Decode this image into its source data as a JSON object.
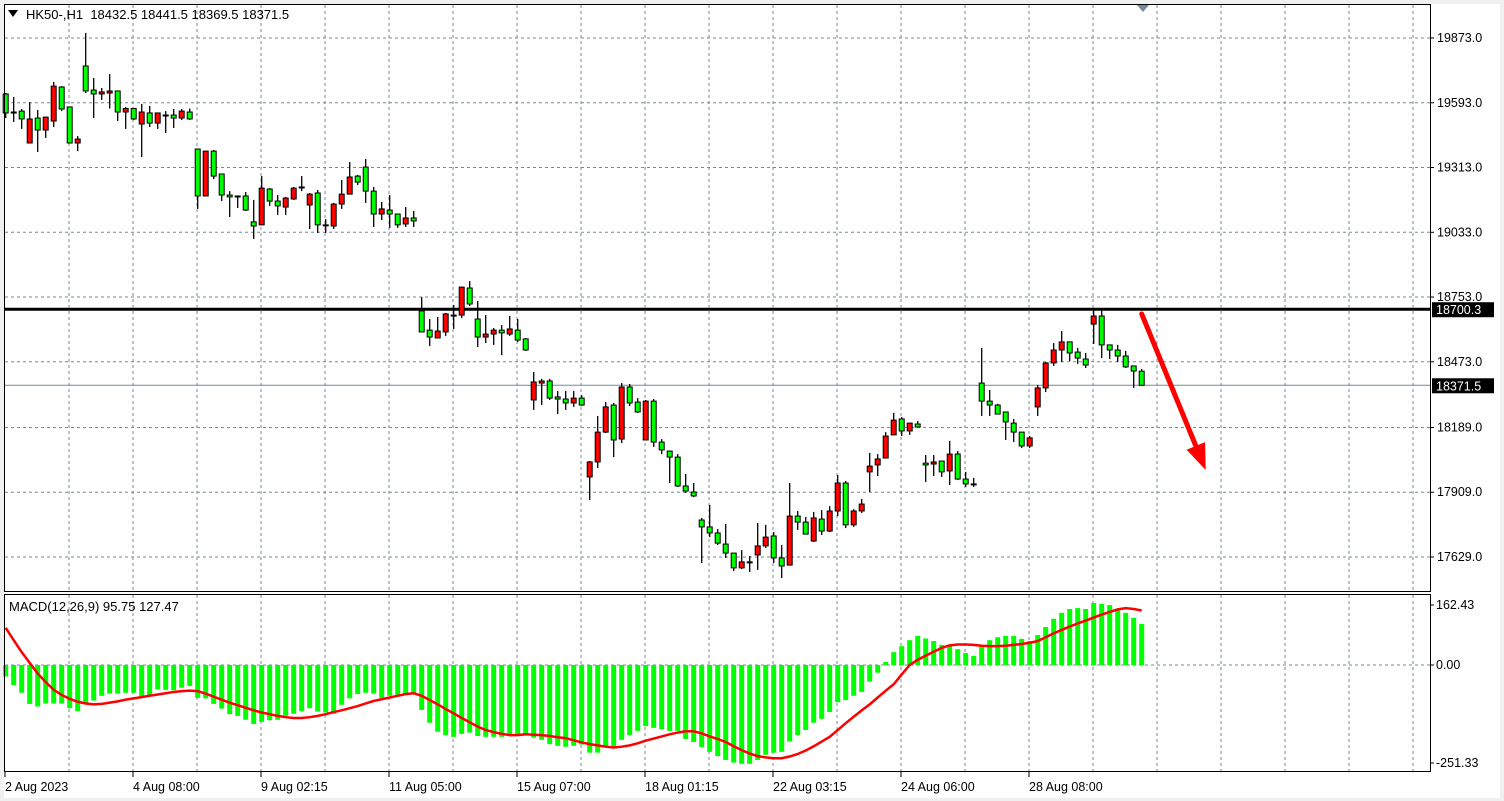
{
  "header": {
    "symbol": "HK50-,H1",
    "ohlc": "18432.5 18441.5 18369.5 18371.5"
  },
  "macd_label": "MACD(12,26,9) 95.75 127.47",
  "colors": {
    "bull": "#ff0000",
    "bear": "#00ff00",
    "histogram": "#00ff00",
    "signal": "#ff0000",
    "grid": "#778899",
    "level_line": "#000000",
    "arrow": "#ff0000"
  },
  "chart_data": [
    {
      "type": "candlestick",
      "symbol": "HK50-",
      "timeframe": "H1",
      "ylim": [
        17530,
        19995
      ],
      "price_ticks": [
        "19873.0",
        "19593.0",
        "19313.0",
        "19033.0",
        "18753.0",
        "18473.0",
        "18189.0",
        "17909.0",
        "17629.0"
      ],
      "horizontal_line": {
        "value": 18700.3,
        "label": "18700.3"
      },
      "current_price": {
        "value": 18371.5,
        "label": "18371.5"
      },
      "annotation": {
        "type": "arrow",
        "direction": "down",
        "from": {
          "bar": 142,
          "price": 18680
        },
        "to": {
          "bar": 150,
          "price": 18005
        }
      },
      "grid": true,
      "time_ticks": [
        {
          "label": "2 Aug 2023",
          "bar": 0
        },
        {
          "label": "4 Aug 08:00",
          "bar": 16
        },
        {
          "label": "9 Aug 02:15",
          "bar": 32
        },
        {
          "label": "11 Aug 05:00",
          "bar": 48
        },
        {
          "label": "15 Aug 07:00",
          "bar": 64
        },
        {
          "label": "18 Aug 01:15",
          "bar": 80
        },
        {
          "label": "22 Aug 03:15",
          "bar": 96
        },
        {
          "label": "24 Aug 06:00",
          "bar": 112
        },
        {
          "label": "28 Aug 08:00",
          "bar": 128
        }
      ],
      "candles_ohlc": [
        [
          19631,
          19635,
          19527,
          19549
        ],
        [
          19553,
          19618,
          19510,
          19553
        ],
        [
          19557,
          19566,
          19480,
          19523
        ],
        [
          19419,
          19596,
          19419,
          19523
        ],
        [
          19527,
          19562,
          19380,
          19475
        ],
        [
          19475,
          19531,
          19441,
          19531
        ],
        [
          19514,
          19683,
          19488,
          19665
        ],
        [
          19661,
          19665,
          19557,
          19566
        ],
        [
          19575,
          19575,
          19419,
          19419
        ],
        [
          19419,
          19449,
          19384,
          19436
        ],
        [
          19752,
          19895,
          19635,
          19644
        ],
        [
          19648,
          19700,
          19527,
          19631
        ],
        [
          19631,
          19657,
          19605,
          19640
        ],
        [
          19635,
          19717,
          19568,
          19644
        ],
        [
          19644,
          19644,
          19514,
          19553
        ],
        [
          19553,
          19575,
          19480,
          19568
        ],
        [
          19568,
          19568,
          19518,
          19523
        ],
        [
          19501,
          19588,
          19358,
          19553
        ],
        [
          19549,
          19579,
          19488,
          19505
        ],
        [
          19505,
          19549,
          19480,
          19549
        ],
        [
          19540,
          19557,
          19462,
          19540
        ],
        [
          19540,
          19566,
          19484,
          19527
        ],
        [
          19527,
          19566,
          19518,
          19557
        ],
        [
          19553,
          19568,
          19518,
          19523
        ],
        [
          19393,
          19393,
          19134,
          19190
        ],
        [
          19190,
          19384,
          19190,
          19384
        ],
        [
          19384,
          19389,
          19263,
          19276
        ],
        [
          19285,
          19285,
          19168,
          19194
        ],
        [
          19194,
          19211,
          19099,
          19186
        ],
        [
          19186,
          19190,
          19138,
          19190
        ],
        [
          19190,
          19207,
          19125,
          19129
        ],
        [
          19078,
          19173,
          19004,
          19060
        ],
        [
          19065,
          19276,
          19065,
          19224
        ],
        [
          19220,
          19224,
          19147,
          19168
        ],
        [
          19168,
          19194,
          19108,
          19147
        ],
        [
          19142,
          19186,
          19108,
          19181
        ],
        [
          19177,
          19229,
          19173,
          19224
        ],
        [
          19229,
          19276,
          19211,
          19229
        ],
        [
          19151,
          19203,
          19047,
          19198
        ],
        [
          19203,
          19216,
          19030,
          19065
        ],
        [
          19065,
          19090,
          19030,
          19065
        ],
        [
          19060,
          19160,
          19047,
          19155
        ],
        [
          19155,
          19259,
          19134,
          19198
        ],
        [
          19198,
          19337,
          19198,
          19272
        ],
        [
          19276,
          19281,
          19237,
          19250
        ],
        [
          19315,
          19350,
          19160,
          19211
        ],
        [
          19211,
          19229,
          19056,
          19112
        ],
        [
          19112,
          19164,
          19086,
          19134
        ],
        [
          19129,
          19194,
          19052,
          19112
        ],
        [
          19112,
          19112,
          19052,
          19065
        ],
        [
          19069,
          19142,
          19056,
          19095
        ],
        [
          19095,
          19125,
          19056,
          19082
        ],
        [
          18693,
          18753,
          18602,
          18602
        ],
        [
          18610,
          18658,
          18541,
          18580
        ],
        [
          18576,
          18667,
          18576,
          18606
        ],
        [
          18602,
          18684,
          18585,
          18680
        ],
        [
          18675,
          18719,
          18615,
          18675
        ],
        [
          18675,
          18796,
          18662,
          18796
        ],
        [
          18792,
          18822,
          18714,
          18723
        ],
        [
          18658,
          18736,
          18537,
          18580
        ],
        [
          18580,
          18675,
          18554,
          18593
        ],
        [
          18593,
          18619,
          18546,
          18610
        ],
        [
          18610,
          18632,
          18502,
          18598
        ],
        [
          18593,
          18671,
          18585,
          18615
        ],
        [
          18610,
          18658,
          18559,
          18567
        ],
        [
          18572,
          18576,
          18520,
          18524
        ],
        [
          18308,
          18429,
          18265,
          18386
        ],
        [
          18381,
          18399,
          18286,
          18390
        ],
        [
          18390,
          18399,
          18308,
          18316
        ],
        [
          18321,
          18347,
          18247,
          18312
        ],
        [
          18312,
          18347,
          18265,
          18295
        ],
        [
          18295,
          18347,
          18278,
          18316
        ],
        [
          18316,
          18329,
          18282,
          18286
        ],
        [
          17975,
          18044,
          17875,
          18040
        ],
        [
          18040,
          18239,
          18014,
          18169
        ],
        [
          18169,
          18299,
          18165,
          18278
        ],
        [
          18286,
          18295,
          18061,
          18135
        ],
        [
          18139,
          18381,
          18122,
          18364
        ],
        [
          18364,
          18377,
          18282,
          18295
        ],
        [
          18299,
          18316,
          18252,
          18256
        ],
        [
          18135,
          18308,
          18135,
          18303
        ],
        [
          18303,
          18312,
          18105,
          18126
        ],
        [
          18126,
          18139,
          18074,
          18092
        ],
        [
          18087,
          18087,
          17949,
          18061
        ],
        [
          18061,
          18074,
          17932,
          17936
        ],
        [
          17936,
          17988,
          17906,
          17914
        ],
        [
          17910,
          17949,
          17888,
          17893
        ],
        [
          17789,
          17798,
          17603,
          17759
        ],
        [
          17759,
          17854,
          17715,
          17733
        ],
        [
          17733,
          17750,
          17681,
          17689
        ],
        [
          17685,
          17772,
          17625,
          17646
        ],
        [
          17646,
          17646,
          17568,
          17582
        ],
        [
          17582,
          17659,
          17577,
          17608
        ],
        [
          17608,
          17633,
          17564,
          17608
        ],
        [
          17638,
          17776,
          17573,
          17677
        ],
        [
          17677,
          17768,
          17668,
          17715
        ],
        [
          17720,
          17737,
          17603,
          17625
        ],
        [
          17625,
          17681,
          17538,
          17590
        ],
        [
          17594,
          17949,
          17594,
          17806
        ],
        [
          17806,
          17828,
          17746,
          17780
        ],
        [
          17780,
          17802,
          17728,
          17728
        ],
        [
          17698,
          17824,
          17694,
          17798
        ],
        [
          17793,
          17832,
          17724,
          17741
        ],
        [
          17741,
          17849,
          17737,
          17828
        ],
        [
          17828,
          17983,
          17806,
          17949
        ],
        [
          17949,
          17958,
          17754,
          17768
        ],
        [
          17768,
          17836,
          17759,
          17828
        ],
        [
          17828,
          17880,
          17819,
          17858
        ],
        [
          17997,
          18079,
          17910,
          18022
        ],
        [
          18027,
          18074,
          17979,
          18053
        ],
        [
          18057,
          18169,
          18057,
          18152
        ],
        [
          18157,
          18252,
          18157,
          18221
        ],
        [
          18226,
          18234,
          18152,
          18174
        ],
        [
          18174,
          18208,
          18157,
          18208
        ],
        [
          18204,
          18217,
          18191,
          18191
        ],
        [
          18035,
          18070,
          17953,
          18027
        ],
        [
          18031,
          18070,
          17979,
          18040
        ],
        [
          18044,
          18044,
          17975,
          17997
        ],
        [
          18001,
          18131,
          17940,
          18074
        ],
        [
          18074,
          18087,
          17962,
          17966
        ],
        [
          17966,
          17997,
          17932,
          17945
        ],
        [
          17945,
          17971,
          17932,
          17945
        ],
        [
          18381,
          18533,
          18239,
          18303
        ],
        [
          18303,
          18351,
          18239,
          18286
        ],
        [
          18286,
          18291,
          18247,
          18247
        ],
        [
          18256,
          18256,
          18135,
          18213
        ],
        [
          18208,
          18226,
          18126,
          18169
        ],
        [
          18169,
          18169,
          18100,
          18109
        ],
        [
          18109,
          18152,
          18100,
          18144
        ],
        [
          18278,
          18373,
          18239,
          18360
        ],
        [
          18360,
          18472,
          18342,
          18468
        ],
        [
          18468,
          18554,
          18455,
          18524
        ],
        [
          18524,
          18606,
          18472,
          18559
        ],
        [
          18559,
          18559,
          18476,
          18511
        ],
        [
          18515,
          18533,
          18464,
          18489
        ],
        [
          18485,
          18511,
          18446,
          18459
        ],
        [
          18636,
          18697,
          18550,
          18671
        ],
        [
          18671,
          18697,
          18489,
          18546
        ],
        [
          18546,
          18546,
          18485,
          18524
        ],
        [
          18524,
          18546,
          18472,
          18498
        ],
        [
          18498,
          18520,
          18446,
          18451
        ],
        [
          18455,
          18455,
          18360,
          18433
        ],
        [
          18432.5,
          18441.5,
          18369.5,
          18371.5
        ]
      ]
    },
    {
      "type": "bar+line",
      "indicator": "MACD(12,26,9)",
      "ylim": [
        -251.33,
        162.43
      ],
      "ticks": [
        "162.43",
        "0.00",
        "-251.33"
      ],
      "histogram": [
        -27,
        -47,
        -65,
        -91,
        -97,
        -90,
        -90,
        -90,
        -101,
        -108,
        -91,
        -83,
        -72,
        -67,
        -67,
        -65,
        -65,
        -74,
        -70,
        -57,
        -58,
        -59,
        -53,
        -49,
        -77,
        -78,
        -91,
        -102,
        -115,
        -119,
        -128,
        -138,
        -133,
        -129,
        -128,
        -119,
        -114,
        -108,
        -101,
        -109,
        -111,
        -114,
        -93,
        -78,
        -68,
        -65,
        -67,
        -77,
        -72,
        -70,
        -68,
        -67,
        -105,
        -135,
        -156,
        -164,
        -168,
        -161,
        -158,
        -166,
        -168,
        -168,
        -168,
        -164,
        -164,
        -164,
        -170,
        -175,
        -185,
        -189,
        -191,
        -189,
        -186,
        -205,
        -205,
        -189,
        -192,
        -175,
        -164,
        -154,
        -143,
        -147,
        -150,
        -154,
        -154,
        -173,
        -180,
        -192,
        -203,
        -213,
        -222,
        -228,
        -231,
        -231,
        -222,
        -210,
        -205,
        -203,
        -179,
        -164,
        -152,
        -135,
        -126,
        -110,
        -87,
        -82,
        -72,
        -63,
        -39,
        -18,
        7,
        30,
        44,
        58,
        68,
        62,
        56,
        47,
        44,
        37,
        28,
        21,
        44,
        58,
        65,
        68,
        68,
        61,
        56,
        70,
        89,
        108,
        122,
        131,
        133,
        131,
        145,
        143,
        140,
        129,
        122,
        110,
        95.75
      ],
      "signal": [
        87,
        58,
        30,
        5,
        -20,
        -40,
        -58,
        -70,
        -79,
        -86,
        -90,
        -92,
        -91,
        -88,
        -85,
        -81,
        -78,
        -75,
        -72,
        -69,
        -66,
        -63,
        -61,
        -60,
        -61,
        -67,
        -74,
        -81,
        -88,
        -94,
        -100,
        -106,
        -111,
        -115,
        -119,
        -122,
        -124,
        -124,
        -122,
        -119,
        -115,
        -110,
        -106,
        -101,
        -96,
        -90,
        -84,
        -80,
        -76,
        -72,
        -68,
        -66,
        -72,
        -82,
        -92,
        -103,
        -113,
        -124,
        -134,
        -144,
        -152,
        -157,
        -161,
        -164,
        -164,
        -162,
        -163,
        -164,
        -166,
        -169,
        -171,
        -176,
        -181,
        -185,
        -188,
        -191,
        -193,
        -191,
        -188,
        -183,
        -177,
        -172,
        -167,
        -162,
        -158,
        -155,
        -155,
        -160,
        -167,
        -173,
        -180,
        -190,
        -199,
        -207,
        -213,
        -216,
        -218,
        -218,
        -214,
        -208,
        -200,
        -190,
        -179,
        -168,
        -152,
        -136,
        -121,
        -106,
        -92,
        -76,
        -60,
        -45,
        -22,
        0,
        12,
        22,
        31,
        40,
        46,
        48,
        48,
        47,
        45,
        44,
        44,
        45,
        47,
        49,
        52,
        56,
        65,
        74,
        82,
        90,
        97,
        104,
        111,
        118,
        124,
        130,
        133,
        131,
        127.47
      ]
    }
  ]
}
